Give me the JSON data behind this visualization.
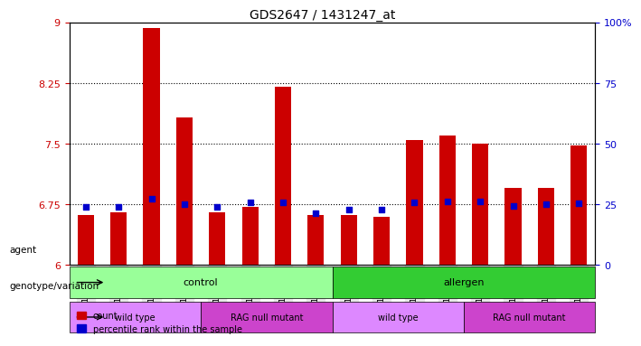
{
  "title": "GDS2647 / 1431247_at",
  "samples": [
    "GSM158136",
    "GSM158137",
    "GSM158144",
    "GSM158145",
    "GSM158132",
    "GSM158133",
    "GSM158140",
    "GSM158141",
    "GSM158138",
    "GSM158139",
    "GSM158146",
    "GSM158147",
    "GSM158134",
    "GSM158135",
    "GSM158142",
    "GSM158143"
  ],
  "bar_values": [
    6.62,
    6.65,
    8.93,
    7.82,
    6.65,
    6.72,
    8.2,
    6.62,
    6.62,
    6.6,
    7.55,
    7.6,
    7.5,
    6.95,
    6.95,
    7.48
  ],
  "percentile_values": [
    6.72,
    6.72,
    6.82,
    6.75,
    6.72,
    6.77,
    6.77,
    6.64,
    6.69,
    6.68,
    6.77,
    6.78,
    6.79,
    6.73,
    6.75,
    6.76
  ],
  "bar_color": "#cc0000",
  "percentile_color": "#0000cc",
  "ymin": 6.0,
  "ymax": 9.0,
  "yticks": [
    6,
    6.75,
    7.5,
    8.25,
    9
  ],
  "ytick_labels": [
    "6",
    "6.75",
    "7.5",
    "8.25",
    "9"
  ],
  "right_yticks": [
    0,
    25,
    50,
    75,
    100
  ],
  "right_ytick_labels": [
    "0",
    "25",
    "50",
    "75",
    "100%"
  ],
  "hlines": [
    6.75,
    7.5,
    8.25
  ],
  "groups": [
    {
      "label": "control",
      "start": 0,
      "end": 7,
      "color": "#99ff99"
    },
    {
      "label": "allergen",
      "start": 8,
      "end": 15,
      "color": "#33cc33"
    }
  ],
  "subgroups": [
    {
      "label": "wild type",
      "start": 0,
      "end": 3,
      "color": "#dd88ff"
    },
    {
      "label": "RAG null mutant",
      "start": 4,
      "end": 7,
      "color": "#cc44cc"
    },
    {
      "label": "wild type",
      "start": 8,
      "end": 11,
      "color": "#dd88ff"
    },
    {
      "label": "RAG null mutant",
      "start": 12,
      "end": 15,
      "color": "#cc44cc"
    }
  ],
  "agent_label": "agent",
  "genotype_label": "genotype/variation",
  "legend_count_label": "count",
  "legend_percentile_label": "percentile rank within the sample",
  "bg_color": "#e8e8e8"
}
